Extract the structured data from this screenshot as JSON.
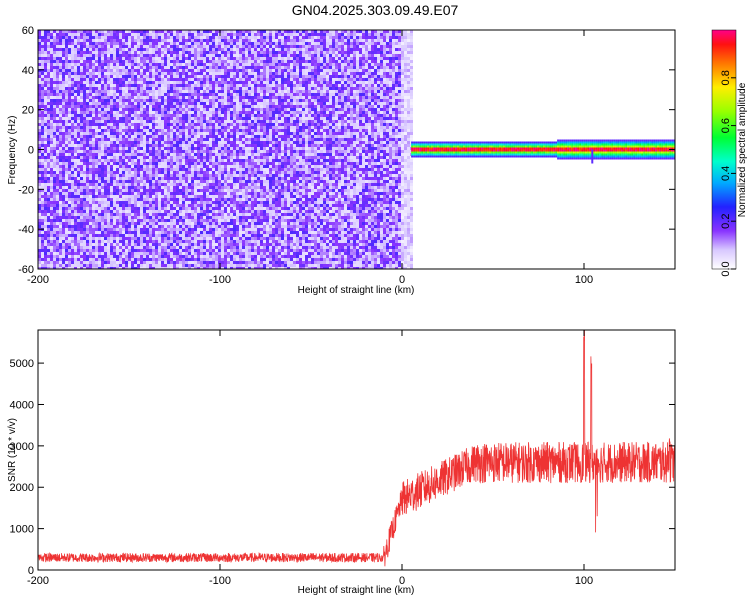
{
  "title": "GN04.2025.303.09.49.E07",
  "colors": {
    "snr_line": "#ee3333",
    "axis": "#000000"
  },
  "chart_data": [
    {
      "type": "heatmap",
      "xlabel": "Height of straight line (km)",
      "ylabel": "Frequency (Hz)",
      "xlim": [
        -200,
        150
      ],
      "ylim": [
        -60,
        60
      ],
      "x_ticks": [
        -200,
        -100,
        0,
        100
      ],
      "y_ticks": [
        -60,
        -40,
        -20,
        0,
        20,
        40,
        60
      ],
      "colorbar": {
        "label": "Normalized spectral amplitude",
        "range": [
          0,
          1
        ],
        "ticks": [
          0.0,
          0.2,
          0.4,
          0.6,
          0.8
        ],
        "colormap": "rainbow"
      },
      "regions": [
        {
          "x_range": [
            -200,
            5
          ],
          "y_range": [
            -60,
            60
          ],
          "description_level": 0.15
        },
        {
          "x_range": [
            5,
            150
          ],
          "y_range": [
            -3,
            3
          ],
          "center_level": 0.95
        }
      ]
    },
    {
      "type": "line",
      "xlabel": "Height of straight line (km)",
      "ylabel": "SNR (10 * v/v)",
      "xlim": [
        -200,
        150
      ],
      "ylim": [
        0,
        5800
      ],
      "x_ticks": [
        -200,
        -100,
        0,
        100
      ],
      "y_ticks": [
        0,
        1000,
        2000,
        3000,
        4000,
        5000
      ],
      "series": [
        {
          "segments": [
            {
              "x": [
                -200,
                -10
              ],
              "mean": 300,
              "noise": 110
            },
            {
              "x": [
                -10,
                0
              ],
              "mean_start": 300,
              "mean_end": 1700,
              "noise": 300
            },
            {
              "x": [
                0,
                40
              ],
              "mean_start": 1700,
              "mean_end": 2600,
              "noise": 450
            },
            {
              "x": [
                40,
                150
              ],
              "mean": 2600,
              "noise": 500
            }
          ],
          "peaks": [
            {
              "x": 100,
              "y": 5800
            },
            {
              "x": 104,
              "y": 5200
            },
            {
              "x": 147,
              "y": 3300
            }
          ]
        }
      ]
    }
  ]
}
